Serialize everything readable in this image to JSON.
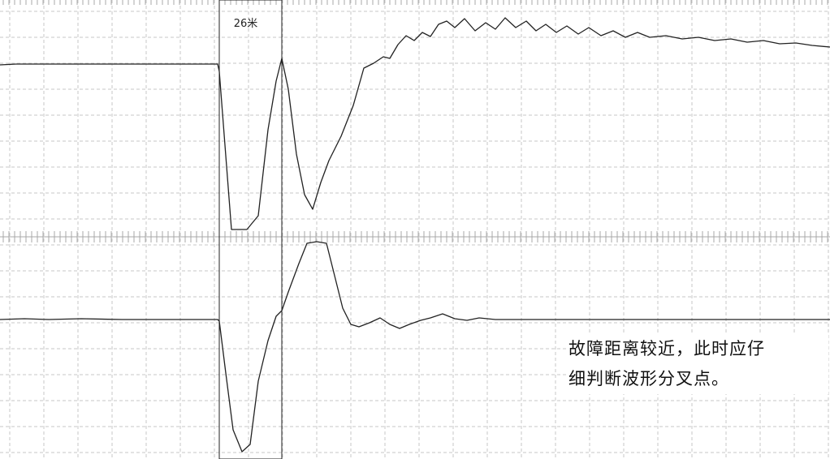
{
  "cursor": {
    "label": "26米"
  },
  "note": {
    "line1": "故障距离较近，此时应仔",
    "line2": "细判断波形分叉点。"
  },
  "colors": {
    "trace": "#222222",
    "grid": "#c7c7c7",
    "divider": "#a8a8a8",
    "cursor": "#222222"
  },
  "chart_data": {
    "type": "line",
    "title": "",
    "xlabel": "",
    "ylabel": "",
    "grid": true,
    "cursor_x_range": [
      270,
      347
    ],
    "series": [
      {
        "points": [
          [
            0,
            80
          ],
          [
            20,
            79
          ],
          [
            60,
            79
          ],
          [
            120,
            79
          ],
          [
            180,
            79
          ],
          [
            240,
            79
          ],
          [
            268,
            79
          ],
          [
            270,
            88
          ],
          [
            285,
            283
          ],
          [
            304,
            283
          ],
          [
            318,
            266
          ],
          [
            330,
            160
          ],
          [
            340,
            100
          ],
          [
            347,
            72
          ],
          [
            355,
            110
          ],
          [
            365,
            190
          ],
          [
            375,
            240
          ],
          [
            385,
            258
          ],
          [
            395,
            225
          ],
          [
            405,
            198
          ],
          [
            420,
            168
          ],
          [
            435,
            130
          ],
          [
            448,
            84
          ],
          [
            460,
            78
          ],
          [
            472,
            70
          ],
          [
            480,
            72
          ],
          [
            490,
            55
          ],
          [
            500,
            44
          ],
          [
            510,
            50
          ],
          [
            520,
            40
          ],
          [
            530,
            45
          ],
          [
            540,
            30
          ],
          [
            550,
            26
          ],
          [
            560,
            34
          ],
          [
            572,
            23
          ],
          [
            585,
            38
          ],
          [
            598,
            28
          ],
          [
            610,
            36
          ],
          [
            622,
            22
          ],
          [
            635,
            34
          ],
          [
            648,
            26
          ],
          [
            660,
            38
          ],
          [
            672,
            30
          ],
          [
            685,
            40
          ],
          [
            698,
            32
          ],
          [
            712,
            42
          ],
          [
            725,
            34
          ],
          [
            740,
            44
          ],
          [
            755,
            38
          ],
          [
            770,
            46
          ],
          [
            785,
            40
          ],
          [
            800,
            46
          ],
          [
            820,
            44
          ],
          [
            840,
            48
          ],
          [
            860,
            46
          ],
          [
            880,
            50
          ],
          [
            900,
            48
          ],
          [
            920,
            52
          ],
          [
            940,
            50
          ],
          [
            960,
            54
          ],
          [
            980,
            53
          ],
          [
            1000,
            56
          ],
          [
            1022,
            58
          ]
        ]
      },
      {
        "points": [
          [
            0,
            394
          ],
          [
            30,
            393
          ],
          [
            60,
            394
          ],
          [
            100,
            393
          ],
          [
            150,
            394
          ],
          [
            200,
            394
          ],
          [
            240,
            394
          ],
          [
            268,
            394
          ],
          [
            270,
            396
          ],
          [
            278,
            460
          ],
          [
            287,
            530
          ],
          [
            298,
            557
          ],
          [
            308,
            548
          ],
          [
            318,
            470
          ],
          [
            330,
            420
          ],
          [
            340,
            390
          ],
          [
            347,
            383
          ],
          [
            355,
            360
          ],
          [
            368,
            325
          ],
          [
            378,
            300
          ],
          [
            390,
            298
          ],
          [
            402,
            300
          ],
          [
            412,
            340
          ],
          [
            422,
            380
          ],
          [
            432,
            400
          ],
          [
            442,
            403
          ],
          [
            455,
            398
          ],
          [
            468,
            392
          ],
          [
            480,
            400
          ],
          [
            492,
            405
          ],
          [
            504,
            400
          ],
          [
            518,
            395
          ],
          [
            530,
            392
          ],
          [
            545,
            387
          ],
          [
            560,
            393
          ],
          [
            575,
            395
          ],
          [
            590,
            392
          ],
          [
            610,
            394
          ],
          [
            640,
            394
          ],
          [
            700,
            394
          ],
          [
            760,
            394
          ],
          [
            820,
            394
          ],
          [
            880,
            394
          ],
          [
            940,
            394
          ],
          [
            1022,
            394
          ]
        ]
      }
    ]
  }
}
